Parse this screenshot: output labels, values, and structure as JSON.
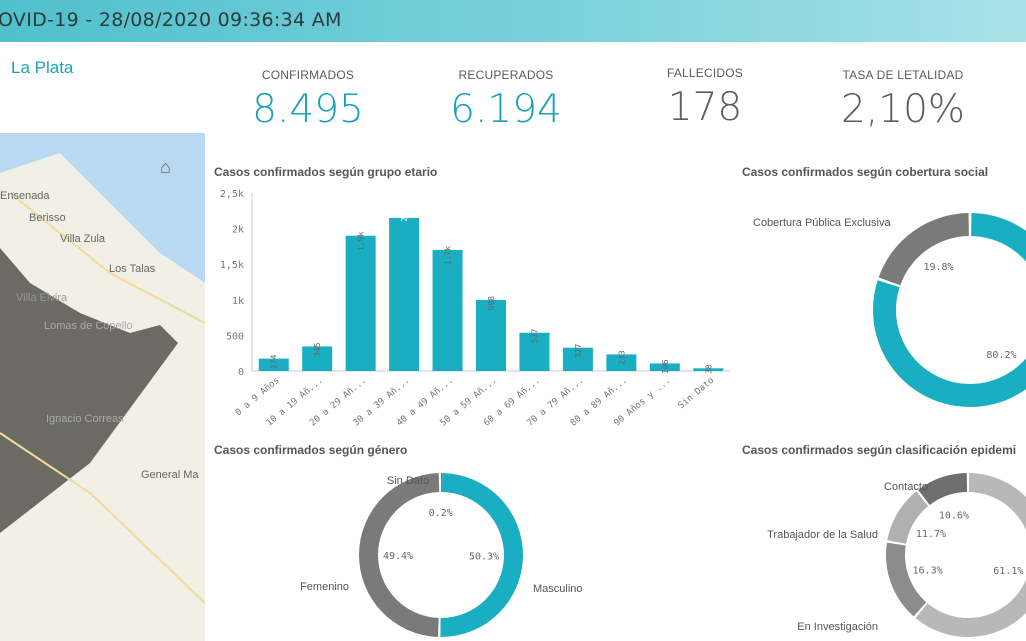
{
  "header": {
    "title": "OVID-19 - 28/08/2020 09:36:34 AM"
  },
  "region": "La Plata",
  "kpis": [
    {
      "label": "CONFIRMADOS",
      "value": "8.495",
      "color": "#17a2b8"
    },
    {
      "label": "RECUPERADOS",
      "value": "6.194",
      "color": "#17a2b8"
    },
    {
      "label": "FALLECIDOS",
      "value": "178",
      "color": "#5e5e5e"
    },
    {
      "label": "TASA DE LETALIDAD",
      "value": "2,10%",
      "color": "#5e5e5e"
    }
  ],
  "map": {
    "icon": "home-icon",
    "places": [
      "Ensenada",
      "Berisso",
      "Villa Zula",
      "Los Talas",
      "Villa Elvira",
      "Lomas de Copello",
      "Ignacio Correas",
      "General Ma"
    ]
  },
  "colors": {
    "accent": "#1aaec2",
    "gray_dark": "#6f6f6f",
    "gray_mid": "#8e8e8e",
    "gray_light": "#b4b4b4"
  },
  "chart_data": [
    {
      "type": "bar",
      "title": "Casos confirmados según grupo etario",
      "categories": [
        "0 a 9 Años",
        "10 a 19 Añ...",
        "20 a 29 Añ...",
        "30 a 39 Añ...",
        "40 a 49 Añ...",
        "50 a 59 Añ...",
        "60 a 69 Añ...",
        "70 a 79 Añ...",
        "80 a 89 Añ...",
        "90 Años y ...",
        "Sin Dato"
      ],
      "values": [
        174,
        345,
        1900,
        2150,
        1700,
        998,
        537,
        327,
        233,
        106,
        38
      ],
      "data_labels": [
        "174",
        "345",
        "1,9k",
        "2,15k",
        "1,7k",
        "998",
        "537",
        "327",
        "233",
        "106",
        "38"
      ],
      "yticks": [
        "0",
        "500",
        "1k",
        "1,5k",
        "2k",
        "2,5k"
      ],
      "ylim": [
        0,
        2500
      ],
      "grid": false
    },
    {
      "type": "pie",
      "title": "Casos confirmados según cobertura social",
      "slices": [
        {
          "label": "",
          "value": 80.2,
          "text": "80.2%",
          "color": "#1aaec2"
        },
        {
          "label": "Cobertura Pública Exclusiva",
          "value": 19.8,
          "text": "19.8%",
          "color": "#7a7a7a"
        }
      ]
    },
    {
      "type": "pie",
      "title": "Casos confirmados según género",
      "slices": [
        {
          "label": "Masculino",
          "value": 50.3,
          "text": "50.3%",
          "color": "#1aaec2"
        },
        {
          "label": "Femenino",
          "value": 49.4,
          "text": "49.4%",
          "color": "#7a7a7a"
        },
        {
          "label": "Sin Dato",
          "value": 0.2,
          "text": "0.2%",
          "color": "#444444"
        }
      ]
    },
    {
      "type": "pie",
      "title": "Casos confirmados según clasificación epidemi",
      "slices": [
        {
          "label": "",
          "value": 61.1,
          "text": "61.1%",
          "color": "#b8b8b8"
        },
        {
          "label": "En Investigación",
          "value": 16.3,
          "text": "16.3%",
          "color": "#8c8c8c"
        },
        {
          "label": "Trabajador de la Salud",
          "value": 11.7,
          "text": "11.7%",
          "color": "#b0b0b0"
        },
        {
          "label": "Contacto",
          "value": 10.6,
          "text": "10.6%",
          "color": "#6f6f6f"
        }
      ]
    }
  ]
}
